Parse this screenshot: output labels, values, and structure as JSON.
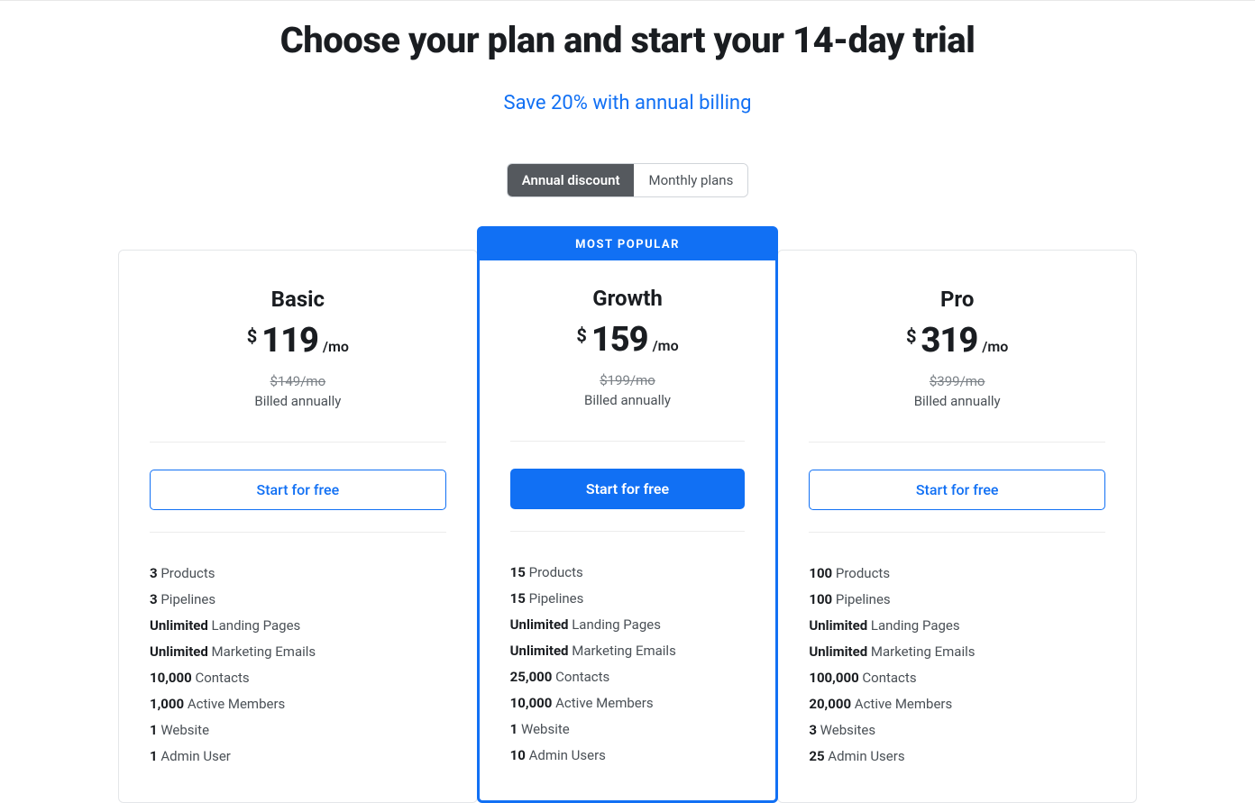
{
  "header": {
    "title": "Choose your plan and start your 14-day trial",
    "subtitle": "Save 20% with annual billing"
  },
  "toggle": {
    "annual": "Annual discount",
    "monthly": "Monthly plans"
  },
  "plans": [
    {
      "name": "Basic",
      "currency": "$",
      "price": "119",
      "period": "/mo",
      "old_price": "$149/mo",
      "billing_note": "Billed annually",
      "cta": "Start for free",
      "features": [
        {
          "bold": "3",
          "text": " Products"
        },
        {
          "bold": "3",
          "text": " Pipelines"
        },
        {
          "bold": "Unlimited",
          "text": " Landing Pages"
        },
        {
          "bold": "Unlimited",
          "text": " Marketing Emails"
        },
        {
          "bold": "10,000",
          "text": " Contacts"
        },
        {
          "bold": "1,000",
          "text": " Active Members"
        },
        {
          "bold": "1",
          "text": " Website"
        },
        {
          "bold": "1",
          "text": " Admin User"
        }
      ]
    },
    {
      "name": "Growth",
      "badge": "MOST POPULAR",
      "currency": "$",
      "price": "159",
      "period": "/mo",
      "old_price": "$199/mo",
      "billing_note": "Billed annually",
      "cta": "Start for free",
      "features": [
        {
          "bold": "15",
          "text": " Products"
        },
        {
          "bold": "15",
          "text": " Pipelines"
        },
        {
          "bold": "Unlimited",
          "text": " Landing Pages"
        },
        {
          "bold": "Unlimited",
          "text": " Marketing Emails"
        },
        {
          "bold": "25,000",
          "text": " Contacts"
        },
        {
          "bold": "10,000",
          "text": " Active Members"
        },
        {
          "bold": "1",
          "text": " Website"
        },
        {
          "bold": "10",
          "text": " Admin Users"
        }
      ]
    },
    {
      "name": "Pro",
      "currency": "$",
      "price": "319",
      "period": "/mo",
      "old_price": "$399/mo",
      "billing_note": "Billed annually",
      "cta": "Start for free",
      "features": [
        {
          "bold": "100",
          "text": " Products"
        },
        {
          "bold": "100",
          "text": " Pipelines"
        },
        {
          "bold": "Unlimited",
          "text": " Landing Pages"
        },
        {
          "bold": "Unlimited",
          "text": " Marketing Emails"
        },
        {
          "bold": "100,000",
          "text": " Contacts"
        },
        {
          "bold": "20,000",
          "text": " Active Members"
        },
        {
          "bold": "3",
          "text": " Websites"
        },
        {
          "bold": "25",
          "text": " Admin Users"
        }
      ]
    }
  ]
}
